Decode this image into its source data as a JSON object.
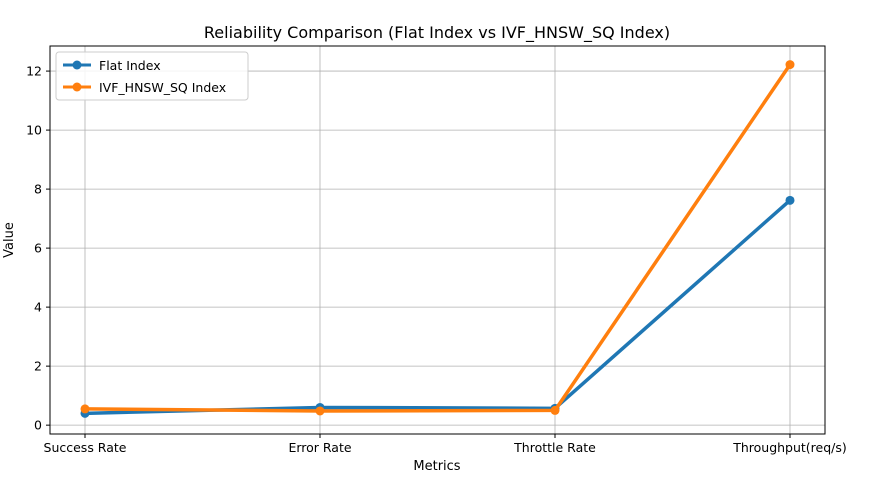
{
  "chart_data": {
    "type": "line",
    "title": "Reliability Comparison (Flat Index vs IVF_HNSW_SQ Index)",
    "xlabel": "Metrics",
    "ylabel": "Value",
    "categories": [
      "Success Rate",
      "Error Rate",
      "Throttle Rate",
      "Throughput(req/s)"
    ],
    "ylim": [
      -0.3,
      12.85
    ],
    "yticks": [
      0,
      2,
      4,
      6,
      8,
      10,
      12
    ],
    "grid": true,
    "legend_position": "top-left",
    "series": [
      {
        "name": "Flat Index",
        "color": "#1f77b4",
        "values": [
          0.4,
          0.6,
          0.57,
          7.62
        ]
      },
      {
        "name": "IVF_HNSW_SQ Index",
        "color": "#ff7f0e",
        "values": [
          0.55,
          0.48,
          0.5,
          12.22
        ]
      }
    ]
  }
}
